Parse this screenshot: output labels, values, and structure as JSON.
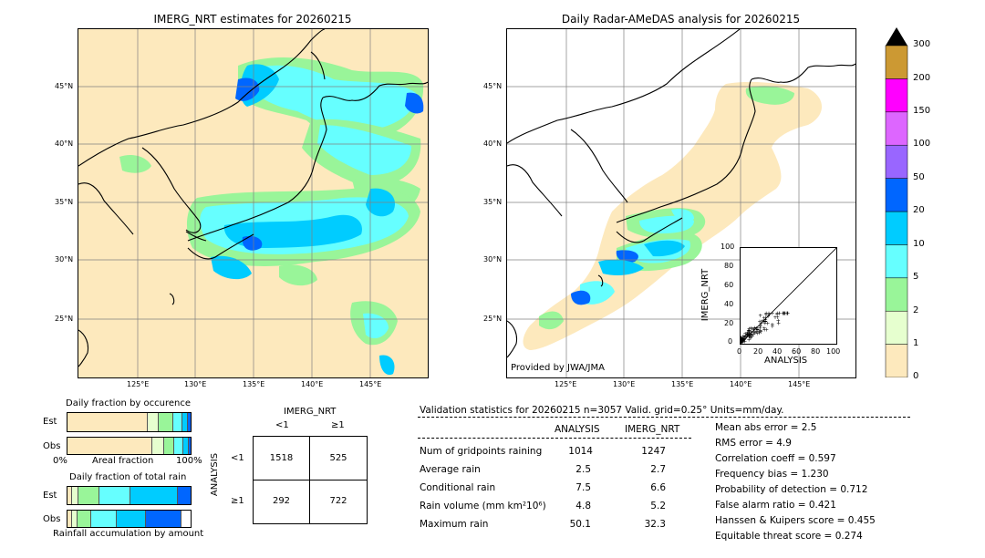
{
  "left_map": {
    "title": "IMERG_NRT estimates for 20260215",
    "lat_labels": [
      "45°N",
      "40°N",
      "35°N",
      "30°N",
      "25°N"
    ],
    "lon_labels": [
      "125°E",
      "130°E",
      "135°E",
      "140°E",
      "145°E"
    ]
  },
  "right_map": {
    "title": "Daily Radar-AMeDAS analysis for 20260215",
    "lat_labels": [
      "45°N",
      "40°N",
      "35°N",
      "30°N",
      "25°N"
    ],
    "lon_labels": [
      "125°E",
      "130°E",
      "135°E",
      "140°E",
      "145°E"
    ],
    "credit": "Provided by JWA/JMA"
  },
  "colorbar": {
    "levels": [
      "0",
      "1",
      "2",
      "5",
      "10",
      "20",
      "50",
      "100",
      "150",
      "200",
      "300"
    ],
    "colors": [
      "#fde9bd",
      "#e6ffcf",
      "#99f599",
      "#66ffff",
      "#00ccff",
      "#0066ff",
      "#9966ff",
      "#dd66ff",
      "#ff00ff",
      "#cc9933"
    ]
  },
  "scatter": {
    "xlabel": "ANALYSIS",
    "ylabel": "IMERG_NRT",
    "ticks": [
      "0",
      "20",
      "40",
      "60",
      "80",
      "100"
    ]
  },
  "occurrence": {
    "title": "Daily fraction by occurence",
    "row_est": "Est",
    "row_obs": "Obs",
    "axis_left": "0%",
    "axis_mid": "Areal fraction",
    "axis_right": "100%"
  },
  "total_rain": {
    "title": "Daily fraction of total rain",
    "row_est": "Est",
    "row_obs": "Obs",
    "footer": "Rainfall accumulation by amount"
  },
  "contingency": {
    "col_header": "IMERG_NRT",
    "col_lt": "<1",
    "col_ge": "≥1",
    "row_header": "ANALYSIS",
    "row_lt": "<1",
    "row_ge": "≥1",
    "cells": [
      "1518",
      "525",
      "292",
      "722"
    ]
  },
  "validation": {
    "header": "Validation statistics for 20260215  n=3057 Valid. grid=0.25° Units=mm/day.",
    "col_analysis": "ANALYSIS",
    "col_imerg": "IMERG_NRT",
    "rows": [
      {
        "label": "Num of gridpoints raining",
        "analysis": "1014",
        "imerg": "1247"
      },
      {
        "label": "Average rain",
        "analysis": "2.5",
        "imerg": "2.7"
      },
      {
        "label": "Conditional rain",
        "analysis": "7.5",
        "imerg": "6.6"
      },
      {
        "label": "Rain volume (mm km²10⁶)",
        "analysis": "4.8",
        "imerg": "5.2"
      },
      {
        "label": "Maximum rain",
        "analysis": "50.1",
        "imerg": "32.3"
      }
    ],
    "scores": [
      "Mean abs error =    2.5",
      "RMS error =    4.9",
      "Correlation coeff =  0.597",
      "Frequency bias =  1.230",
      "Probability of detection =  0.712",
      "False alarm ratio =  0.421",
      "Hanssen & Kuipers score =  0.455",
      "Equitable threat score =  0.274"
    ]
  }
}
